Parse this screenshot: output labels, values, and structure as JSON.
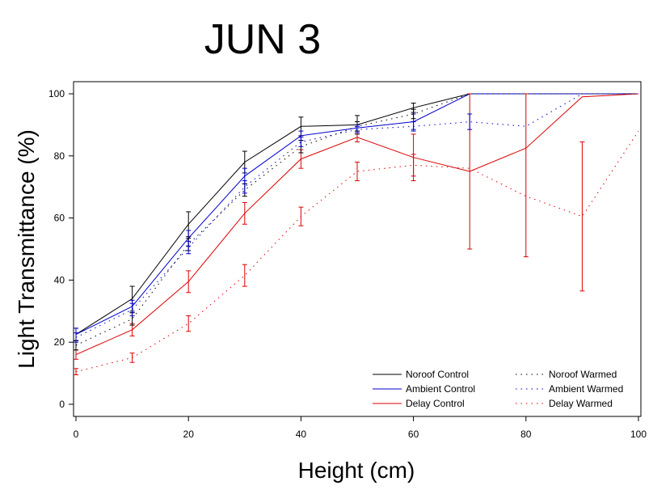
{
  "chart_data": {
    "type": "line",
    "title": "JUN   3",
    "xlabel": "Height  (cm)",
    "ylabel": "Light  Transmittance  (%)",
    "xlim": [
      0,
      100
    ],
    "ylim": [
      0,
      100
    ],
    "x_ticks": [
      0,
      20,
      40,
      60,
      80,
      100
    ],
    "y_ticks": [
      0,
      20,
      40,
      60,
      80,
      100
    ],
    "grid": false,
    "legend_position": "bottom-right",
    "series": [
      {
        "name": "Noroof Control",
        "color": "#000000",
        "style": "solid",
        "x": [
          0,
          10,
          20,
          30,
          40,
          50,
          60,
          70,
          80,
          90,
          100
        ],
        "y": [
          22.5,
          34,
          58,
          78,
          89.5,
          90,
          95.5,
          100,
          100,
          100,
          100
        ],
        "err": [
          2,
          4,
          4,
          3.5,
          3,
          3,
          1.5,
          0,
          0,
          0,
          0
        ]
      },
      {
        "name": "Ambient Control",
        "color": "#0000cc",
        "style": "solid",
        "x": [
          0,
          10,
          20,
          30,
          40,
          50,
          60,
          70,
          80,
          90,
          100
        ],
        "y": [
          22.5,
          31.5,
          53.5,
          73.5,
          86.5,
          89,
          91,
          100,
          100,
          100,
          100
        ],
        "err": [
          2,
          2,
          2.5,
          2.5,
          1.5,
          1,
          2.5,
          0,
          0,
          0,
          0
        ]
      },
      {
        "name": "Delay Control",
        "color": "#dd0000",
        "style": "solid",
        "x": [
          0,
          10,
          20,
          30,
          40,
          50,
          60,
          70,
          80,
          90,
          100
        ],
        "y": [
          16,
          24,
          39.5,
          61.5,
          79,
          86,
          79.5,
          75,
          82.5,
          99,
          100
        ],
        "err": [
          1.5,
          2,
          3.5,
          3.5,
          3,
          1.5,
          7.5,
          25,
          35,
          0,
          0
        ]
      },
      {
        "name": "Noroof Warmed",
        "color": "#000000",
        "style": "dotted",
        "x": [
          0,
          10,
          20,
          30,
          40,
          50,
          60,
          70,
          80,
          90,
          100
        ],
        "y": [
          19,
          27.5,
          51.5,
          69,
          83,
          89.5,
          93.5,
          100,
          100,
          100,
          100
        ],
        "err": [
          1.5,
          2,
          2,
          2,
          2,
          1.5,
          1.5,
          0,
          0,
          0,
          0
        ]
      },
      {
        "name": "Ambient Warmed",
        "color": "#0000cc",
        "style": "dotted",
        "x": [
          0,
          10,
          20,
          30,
          40,
          50,
          60,
          70,
          80,
          90,
          100
        ],
        "y": [
          21.5,
          30.5,
          50.5,
          70,
          84.5,
          88.5,
          89.5,
          91,
          89.5,
          100,
          100
        ],
        "err": [
          1.5,
          2,
          2,
          2,
          1.5,
          1,
          1.5,
          2.5,
          0,
          0,
          0
        ]
      },
      {
        "name": "Delay Warmed",
        "color": "#dd0000",
        "style": "dotted",
        "x": [
          0,
          10,
          20,
          30,
          40,
          50,
          60,
          70,
          80,
          90,
          100
        ],
        "y": [
          10.5,
          15,
          26,
          41.5,
          60.5,
          75,
          77,
          76,
          67,
          60.5,
          88
        ],
        "err": [
          1,
          1.5,
          2.5,
          3.5,
          3,
          3,
          3.5,
          0,
          0,
          24,
          0
        ]
      }
    ]
  }
}
